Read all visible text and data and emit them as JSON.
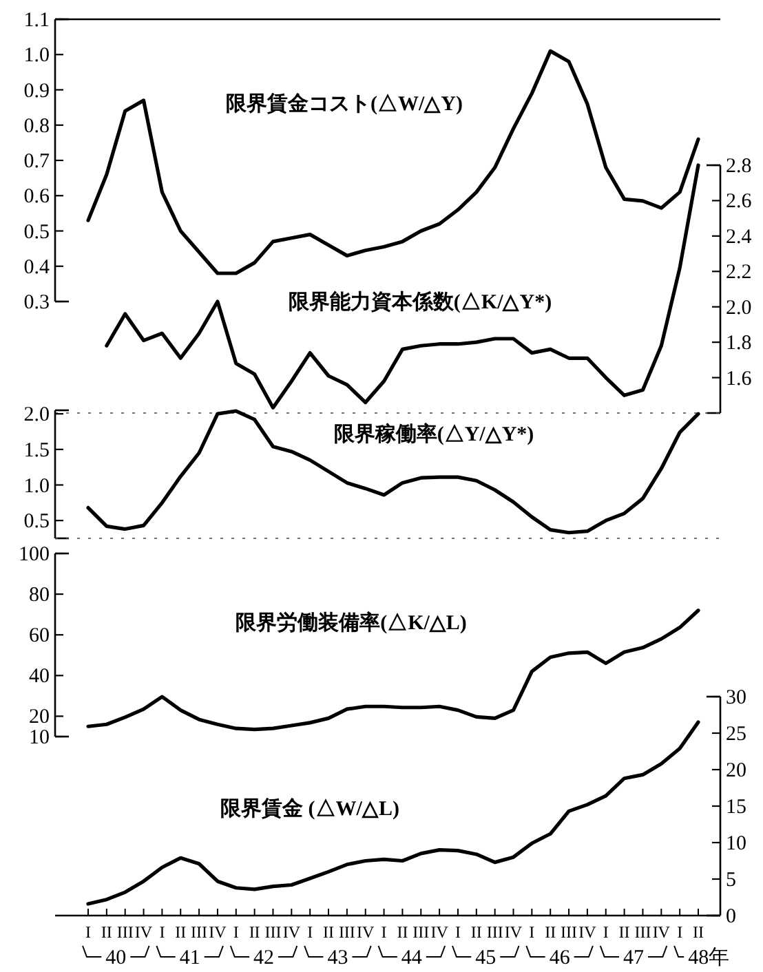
{
  "chart_data": [
    {
      "type": "line",
      "title": "限界賃金コスト(△W/△Y)",
      "color": "#000000",
      "values": [
        0.53,
        0.66,
        0.84,
        0.87,
        0.61,
        0.5,
        0.44,
        0.38,
        0.38,
        0.41,
        0.47,
        0.48,
        0.49,
        0.46,
        0.43,
        0.445,
        0.455,
        0.47,
        0.5,
        0.52,
        0.56,
        0.61,
        0.68,
        0.79,
        0.89,
        1.01,
        0.98,
        0.86,
        0.68,
        0.59,
        0.585,
        0.565,
        0.61,
        0.76
      ],
      "ylim": [
        0.3,
        1.1
      ],
      "yticks": [
        0.3,
        0.4,
        0.5,
        0.6,
        0.7,
        0.8,
        0.9,
        {
          "value": 1.0,
          "label": "1.0"
        },
        1.1
      ],
      "tick_labels": "y"
    },
    {
      "type": "line",
      "title": "限界能力資本係数(△K/△Y*)",
      "series": [
        {
          "color": "#000000",
          "values": [
            null,
            1.78,
            1.96,
            1.81,
            1.85,
            1.71,
            1.85,
            2.03,
            1.68,
            1.62,
            1.43,
            1.58,
            1.74,
            1.61,
            1.56,
            1.46,
            1.58,
            1.76,
            1.78,
            1.79,
            1.79,
            1.8,
            1.82,
            1.82,
            1.74,
            1.76,
            1.71,
            1.71,
            1.6,
            1.5,
            1.53,
            1.78,
            2.22,
            2.8
          ]
        }
      ],
      "ylim": [
        1.4,
        2.8
      ],
      "yticks": [
        1.6,
        1.8,
        {
          "value": 2.0,
          "label": "2.0"
        },
        2.2,
        2.4,
        2.6,
        2.8
      ],
      "tick_labels": "y"
    },
    {
      "type": "line",
      "title": "限界稼働率(△Y/△Y*)",
      "color": "#000000",
      "values": [
        0.68,
        0.42,
        0.38,
        0.43,
        0.75,
        1.12,
        1.45,
        2.0,
        2.04,
        1.92,
        1.54,
        1.47,
        1.35,
        1.19,
        1.03,
        0.95,
        0.86,
        1.03,
        1.1,
        1.11,
        1.11,
        1.06,
        0.93,
        0.76,
        0.55,
        0.37,
        0.33,
        0.35,
        0.5,
        0.6,
        0.81,
        1.23,
        1.74,
        2.0
      ],
      "ylim": [
        0.25,
        2.05
      ],
      "yticks": [
        {
          "value": 0.5,
          "label": "0.5"
        },
        {
          "value": 1.0,
          "label": "1.0"
        },
        1.5,
        {
          "value": 2.0,
          "label": "2.0"
        }
      ],
      "tick_labels": "y"
    },
    {
      "type": "line",
      "title": "限界労働装備率(△K/△L)",
      "color": "#000000",
      "values": [
        15,
        16,
        19.5,
        23.5,
        29.6,
        23,
        18.4,
        16,
        14,
        13.5,
        14,
        15.4,
        16.8,
        19,
        23.5,
        24.8,
        24.8,
        24.3,
        24.3,
        24.8,
        23,
        19.7,
        19,
        23,
        42,
        49,
        51,
        51.5,
        46,
        51.5,
        53.7,
        58,
        63.6,
        72
      ],
      "ylim": [
        10,
        100
      ],
      "yticks": [
        10,
        20,
        40,
        60,
        80,
        100
      ],
      "tick_labels": "y"
    },
    {
      "type": "line",
      "title": "限界賃金 (△W/△L)",
      "categories": [
        "I",
        "II",
        "III",
        "IV",
        "I",
        "II",
        "III",
        "IV",
        "I",
        "II",
        "III",
        "IV",
        "I",
        "II",
        "III",
        "IV",
        "I",
        "II",
        "III",
        "IV",
        "I",
        "II",
        "III",
        "IV",
        "I",
        "II",
        "III",
        "IV",
        "I",
        "II",
        "III",
        "IV",
        "I",
        "II"
      ],
      "series": [
        {
          "axis": "y2",
          "color": "#000000",
          "values": [
            1.6,
            2.2,
            3.2,
            4.7,
            6.6,
            7.9,
            7.1,
            4.7,
            3.8,
            3.6,
            4.0,
            4.2,
            5.1,
            6.0,
            7.0,
            7.5,
            7.7,
            7.5,
            8.5,
            9.0,
            8.9,
            8.4,
            7.3,
            8.0,
            9.9,
            11.2,
            14.3,
            15.2,
            16.4,
            18.8,
            19.3,
            20.8,
            22.9,
            26.5
          ]
        }
      ],
      "y2lim": [
        0,
        30
      ],
      "y2ticks": [
        0,
        5,
        10,
        15,
        20,
        25,
        30
      ],
      "annotations": [
        "40",
        "41",
        "42",
        "43",
        "44",
        "45",
        "46",
        "47",
        "48年"
      ]
    }
  ]
}
